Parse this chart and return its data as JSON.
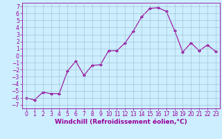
{
  "x": [
    0,
    1,
    2,
    3,
    4,
    5,
    6,
    7,
    8,
    9,
    10,
    11,
    12,
    13,
    14,
    15,
    16,
    17,
    18,
    19,
    20,
    21,
    22,
    23
  ],
  "y": [
    -6.0,
    -6.3,
    -5.2,
    -5.4,
    -5.4,
    -2.2,
    -0.8,
    -2.8,
    -1.4,
    -1.3,
    0.7,
    0.7,
    1.8,
    3.5,
    5.5,
    6.7,
    6.8,
    6.3,
    3.6,
    0.5,
    1.8,
    0.7,
    1.5,
    0.6
  ],
  "line_color": "#990099",
  "marker": "D",
  "marker_size": 2,
  "bg_color": "#cceeff",
  "grid_color": "#99bbcc",
  "xlim": [
    -0.5,
    23.5
  ],
  "ylim": [
    -7.5,
    7.5
  ],
  "yticks": [
    -7,
    -6,
    -5,
    -4,
    -3,
    -2,
    -1,
    0,
    1,
    2,
    3,
    4,
    5,
    6,
    7
  ],
  "xticks": [
    0,
    1,
    2,
    3,
    4,
    5,
    6,
    7,
    8,
    9,
    10,
    11,
    12,
    13,
    14,
    15,
    16,
    17,
    18,
    19,
    20,
    21,
    22,
    23
  ],
  "xlabel": "Windchill (Refroidissement éolien,°C)",
  "xlabel_fontsize": 6.5,
  "tick_fontsize": 5.5
}
